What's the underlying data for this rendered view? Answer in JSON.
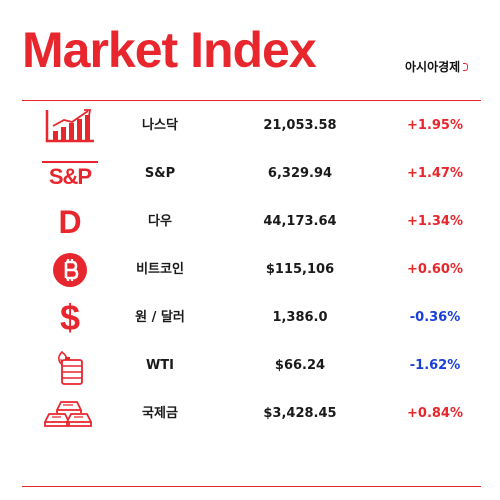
{
  "header": {
    "title": "Market Index",
    "brand": "아시아경제"
  },
  "colors": {
    "accent": "#e8262d",
    "up": "#e8262d",
    "down": "#1a3fd8"
  },
  "rows": [
    {
      "icon": "bar-chart-icon",
      "name": "나스닥",
      "value": "21,053.58",
      "change": "+1.95%",
      "direction": "up"
    },
    {
      "icon": "sp-logo-icon",
      "icon_text": "S&P",
      "name": "S&P",
      "value": "6,329.94",
      "change": "+1.47%",
      "direction": "up"
    },
    {
      "icon": "dow-logo-icon",
      "icon_text": "D",
      "name": "다우",
      "value": "44,173.64",
      "change": "+1.34%",
      "direction": "up"
    },
    {
      "icon": "bitcoin-icon",
      "name": "비트코인",
      "value": "$115,106",
      "change": "+0.60%",
      "direction": "up"
    },
    {
      "icon": "dollar-sign-icon",
      "icon_text": "$",
      "name": "원 / 달러",
      "value": "1,386.0",
      "change": "-0.36%",
      "direction": "down"
    },
    {
      "icon": "oil-barrel-icon",
      "name": "WTI",
      "value": "$66.24",
      "change": "-1.62%",
      "direction": "down"
    },
    {
      "icon": "gold-bars-icon",
      "name": "국제금",
      "value": "$3,428.45",
      "change": "+0.84%",
      "direction": "up"
    }
  ]
}
